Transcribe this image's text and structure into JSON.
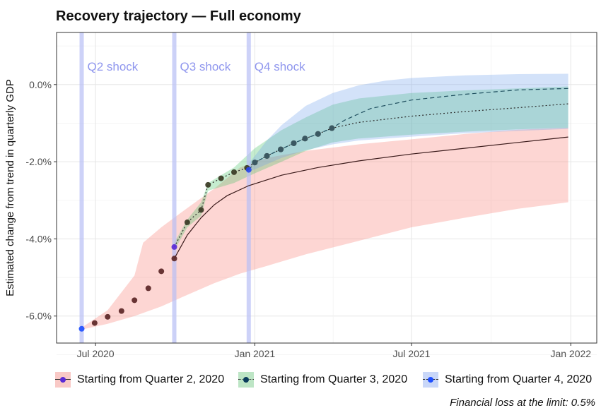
{
  "title": "Recovery trajectory — Full economy",
  "caption": "Financial loss at the limit: 0.5%",
  "chart_data": {
    "type": "line",
    "title": "Recovery trajectory — Full economy",
    "xlabel": "",
    "ylabel": "Estimated change from trend in quarterly GDP",
    "x_ticks": [
      {
        "date": "2020-07-01",
        "label": "Jul 2020"
      },
      {
        "date": "2021-01-01",
        "label": "Jan 2021"
      },
      {
        "date": "2021-07-01",
        "label": "Jul 2021"
      },
      {
        "date": "2022-01-01",
        "label": "Jan 2022"
      }
    ],
    "xlim": [
      "2020-05-17",
      "2022-01-31"
    ],
    "y_ticks": [
      -6.0,
      -4.0,
      -2.0,
      0.0
    ],
    "y_tick_labels": [
      "-6.0%",
      "-4.0%",
      "-2.0%",
      "0.0%"
    ],
    "ylim": [
      -6.7,
      1.35
    ],
    "grid": true,
    "legend_position": "bottom",
    "shocks": [
      {
        "label": "Q2 shock",
        "date": "2020-06-15"
      },
      {
        "label": "Q3 shock",
        "date": "2020-09-30"
      },
      {
        "label": "Q4 shock",
        "date": "2020-12-25"
      }
    ],
    "series": [
      {
        "name": "Starting from Quarter 2, 2020",
        "band_color": "#f8766d",
        "line_color": "#3a1a1a",
        "point_color": "#5b2626",
        "start_point_color": "#1f4fff",
        "line_style": "solid",
        "points": [
          [
            "2020-06-15",
            -6.33
          ],
          [
            "2020-06-30",
            -6.18
          ],
          [
            "2020-07-15",
            -6.02
          ],
          [
            "2020-07-31",
            -5.87
          ],
          [
            "2020-08-15",
            -5.59
          ],
          [
            "2020-08-31",
            -5.28
          ],
          [
            "2020-09-15",
            -4.84
          ],
          [
            "2020-09-30",
            -4.51
          ]
        ],
        "line": [
          [
            "2020-09-30",
            -4.51
          ],
          [
            "2020-10-15",
            -3.9
          ],
          [
            "2020-10-31",
            -3.45
          ],
          [
            "2020-11-15",
            -3.12
          ],
          [
            "2020-11-30",
            -2.88
          ],
          [
            "2020-12-25",
            -2.62
          ],
          [
            "2021-02-01",
            -2.35
          ],
          [
            "2021-03-15",
            -2.15
          ],
          [
            "2021-05-01",
            -1.98
          ],
          [
            "2021-07-01",
            -1.8
          ],
          [
            "2021-09-01",
            -1.65
          ],
          [
            "2021-11-01",
            -1.5
          ],
          [
            "2021-12-29",
            -1.36
          ]
        ],
        "band_upper": [
          [
            "2020-06-15",
            -6.3
          ],
          [
            "2020-07-15",
            -5.85
          ],
          [
            "2020-08-15",
            -4.95
          ],
          [
            "2020-08-25",
            -4.1
          ],
          [
            "2020-09-15",
            -3.7
          ],
          [
            "2020-10-15",
            -3.2
          ],
          [
            "2020-11-15",
            -2.7
          ],
          [
            "2020-12-15",
            -2.15
          ],
          [
            "2021-01-15",
            -1.9
          ],
          [
            "2021-03-01",
            -1.72
          ],
          [
            "2021-05-01",
            -1.55
          ],
          [
            "2021-07-01",
            -1.42
          ],
          [
            "2021-09-01",
            -1.28
          ],
          [
            "2021-11-01",
            -1.17
          ],
          [
            "2021-12-29",
            -1.12
          ]
        ],
        "band_lower": [
          [
            "2020-06-15",
            -6.35
          ],
          [
            "2020-07-15",
            -6.2
          ],
          [
            "2020-08-15",
            -6.0
          ],
          [
            "2020-09-15",
            -5.75
          ],
          [
            "2020-10-15",
            -5.45
          ],
          [
            "2020-11-15",
            -5.15
          ],
          [
            "2020-12-15",
            -4.9
          ],
          [
            "2021-01-15",
            -4.7
          ],
          [
            "2021-03-01",
            -4.4
          ],
          [
            "2021-05-01",
            -4.05
          ],
          [
            "2021-07-01",
            -3.7
          ],
          [
            "2021-09-01",
            -3.45
          ],
          [
            "2021-11-01",
            -3.22
          ],
          [
            "2021-12-29",
            -3.05
          ]
        ]
      },
      {
        "name": "Starting from Quarter 3, 2020",
        "band_color": "#3fbf5f",
        "line_color": "#2a2a2a",
        "point_color": "#3b3b25",
        "start_point_color": "#5b2bd6",
        "line_style": "dotted",
        "points": [
          [
            "2020-09-30",
            -4.21
          ],
          [
            "2020-10-15",
            -3.57
          ],
          [
            "2020-10-31",
            -3.25
          ],
          [
            "2020-11-08",
            -2.6
          ],
          [
            "2020-11-23",
            -2.43
          ],
          [
            "2020-12-08",
            -2.27
          ],
          [
            "2020-12-23",
            -2.16
          ],
          [
            "2021-01-01",
            -2.02
          ],
          [
            "2021-01-15",
            -1.85
          ],
          [
            "2021-01-31",
            -1.68
          ],
          [
            "2021-02-15",
            -1.52
          ],
          [
            "2021-02-28",
            -1.4
          ],
          [
            "2021-03-15",
            -1.28
          ],
          [
            "2021-03-31",
            -1.13
          ]
        ],
        "line": [
          [
            "2020-09-30",
            -4.21
          ],
          [
            "2020-10-15",
            -3.57
          ],
          [
            "2020-10-31",
            -3.25
          ],
          [
            "2020-11-08",
            -2.6
          ],
          [
            "2020-11-23",
            -2.43
          ],
          [
            "2020-12-08",
            -2.27
          ],
          [
            "2020-12-23",
            -2.16
          ],
          [
            "2021-01-01",
            -2.02
          ],
          [
            "2021-01-15",
            -1.85
          ],
          [
            "2021-01-31",
            -1.68
          ],
          [
            "2021-02-15",
            -1.52
          ],
          [
            "2021-02-28",
            -1.4
          ],
          [
            "2021-03-15",
            -1.28
          ],
          [
            "2021-03-31",
            -1.13
          ],
          [
            "2021-05-01",
            -0.98
          ],
          [
            "2021-07-01",
            -0.82
          ],
          [
            "2021-09-01",
            -0.7
          ],
          [
            "2021-11-01",
            -0.6
          ],
          [
            "2021-12-29",
            -0.5
          ]
        ],
        "band_upper": [
          [
            "2020-09-30",
            -4.1
          ],
          [
            "2020-10-15",
            -3.5
          ],
          [
            "2020-10-31",
            -3.05
          ],
          [
            "2020-11-08",
            -2.55
          ],
          [
            "2020-12-08",
            -2.15
          ],
          [
            "2021-01-01",
            -1.65
          ],
          [
            "2021-02-01",
            -1.18
          ],
          [
            "2021-03-01",
            -0.85
          ],
          [
            "2021-04-01",
            -0.52
          ],
          [
            "2021-05-01",
            -0.36
          ],
          [
            "2021-07-01",
            -0.22
          ],
          [
            "2021-09-01",
            -0.15
          ],
          [
            "2021-11-01",
            -0.1
          ],
          [
            "2021-12-29",
            -0.05
          ]
        ],
        "band_lower": [
          [
            "2020-09-30",
            -4.3
          ],
          [
            "2020-10-15",
            -3.7
          ],
          [
            "2020-10-31",
            -3.4
          ],
          [
            "2020-11-08",
            -2.75
          ],
          [
            "2020-12-08",
            -2.55
          ],
          [
            "2021-01-01",
            -2.3
          ],
          [
            "2021-02-01",
            -2.0
          ],
          [
            "2021-03-01",
            -1.72
          ],
          [
            "2021-04-01",
            -1.5
          ],
          [
            "2021-05-01",
            -1.4
          ],
          [
            "2021-07-01",
            -1.3
          ],
          [
            "2021-09-01",
            -1.22
          ],
          [
            "2021-11-01",
            -1.16
          ],
          [
            "2021-12-29",
            -1.12
          ]
        ]
      },
      {
        "name": "Starting from Quarter 4, 2020",
        "band_color": "#6d9eeb",
        "line_color": "#1f4f5f",
        "point_color": "#3b5a66",
        "start_point_color": "#2a48e8",
        "line_style": "dashed",
        "points": [
          [
            "2020-12-25",
            -2.21
          ],
          [
            "2021-01-01",
            -2.02
          ],
          [
            "2021-01-15",
            -1.85
          ],
          [
            "2021-01-31",
            -1.68
          ],
          [
            "2021-02-15",
            -1.52
          ],
          [
            "2021-02-28",
            -1.4
          ],
          [
            "2021-03-15",
            -1.28
          ],
          [
            "2021-03-31",
            -1.13
          ]
        ],
        "line": [
          [
            "2020-12-25",
            -2.21
          ],
          [
            "2021-01-01",
            -2.02
          ],
          [
            "2021-01-15",
            -1.85
          ],
          [
            "2021-01-31",
            -1.68
          ],
          [
            "2021-02-15",
            -1.52
          ],
          [
            "2021-02-28",
            -1.4
          ],
          [
            "2021-03-15",
            -1.28
          ],
          [
            "2021-03-31",
            -1.13
          ],
          [
            "2021-04-15",
            -0.92
          ],
          [
            "2021-05-15",
            -0.62
          ],
          [
            "2021-07-01",
            -0.4
          ],
          [
            "2021-09-01",
            -0.25
          ],
          [
            "2021-11-01",
            -0.14
          ],
          [
            "2021-12-29",
            -0.1
          ]
        ],
        "band_upper": [
          [
            "2020-12-25",
            -2.05
          ],
          [
            "2021-01-01",
            -1.85
          ],
          [
            "2021-01-15",
            -1.45
          ],
          [
            "2021-02-01",
            -1.05
          ],
          [
            "2021-03-01",
            -0.55
          ],
          [
            "2021-04-01",
            -0.22
          ],
          [
            "2021-05-01",
            -0.02
          ],
          [
            "2021-06-01",
            0.1
          ],
          [
            "2021-07-01",
            0.17
          ],
          [
            "2021-09-01",
            0.24
          ],
          [
            "2021-11-01",
            0.27
          ],
          [
            "2021-12-29",
            0.28
          ]
        ],
        "band_lower": [
          [
            "2020-12-25",
            -2.25
          ],
          [
            "2021-01-01",
            -2.2
          ],
          [
            "2021-02-01",
            -1.9
          ],
          [
            "2021-03-01",
            -1.7
          ],
          [
            "2021-04-01",
            -1.55
          ],
          [
            "2021-05-01",
            -1.45
          ],
          [
            "2021-07-01",
            -1.35
          ],
          [
            "2021-09-01",
            -1.26
          ],
          [
            "2021-11-01",
            -1.2
          ],
          [
            "2021-12-29",
            -1.15
          ]
        ]
      }
    ]
  },
  "legend": [
    {
      "label": "Starting from Quarter 2, 2020",
      "fill": "#f9c9c6",
      "dot": "#5b2bd6",
      "line": "#333333"
    },
    {
      "label": "Starting from Quarter 3, 2020",
      "fill": "#bde5c5",
      "dot": "#0b3d5c",
      "line": "#333333"
    },
    {
      "label": "Starting from Quarter 4, 2020",
      "fill": "#c9d7f8",
      "dot": "#1f4fff",
      "line": "#333333"
    }
  ]
}
